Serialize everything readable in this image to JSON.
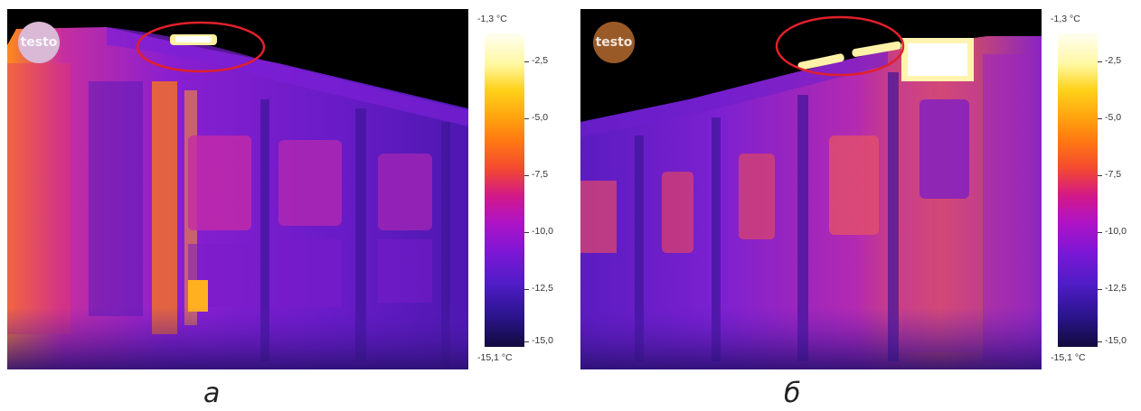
{
  "panels": [
    {
      "caption": "а",
      "logo_text": "testo",
      "logo_color": "#d9b9d6",
      "scale": {
        "max_label": "-1,3 °C",
        "min_label": "-15,1 °C",
        "ticks": [
          "-2,5",
          "-5,0",
          "-7,5",
          "-10,0",
          "-12,5",
          "-15,0"
        ]
      }
    },
    {
      "caption": "б",
      "logo_text": "testo",
      "logo_color": "#9a5a28",
      "scale": {
        "max_label": "-1,3 °C",
        "min_label": "-15,1 °C",
        "ticks": [
          "-2,5",
          "-5,0",
          "-7,5",
          "-10,0",
          "-12,5",
          "-15,0"
        ]
      }
    }
  ],
  "colors": {
    "highlight_ellipse": "#e0202a",
    "sky": "#000000"
  }
}
